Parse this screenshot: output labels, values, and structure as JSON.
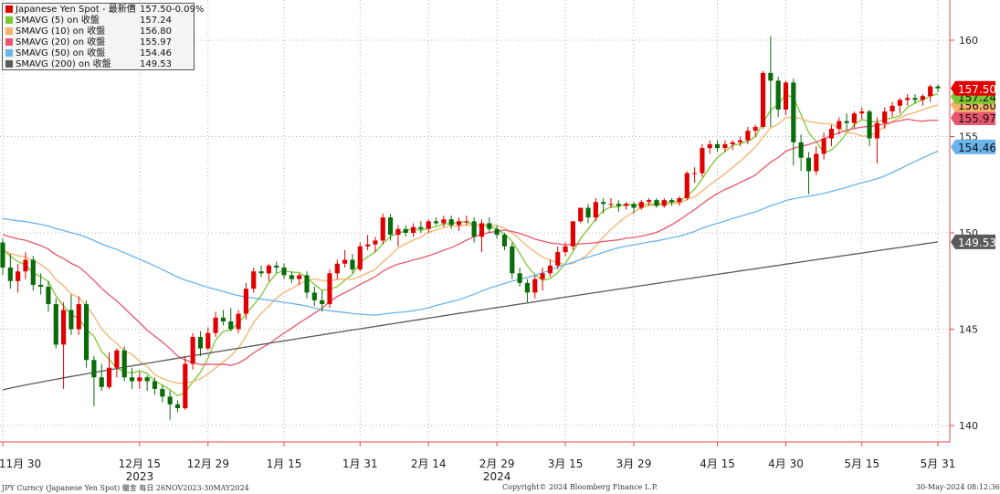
{
  "chart_data": {
    "type": "candlestick",
    "x_tick_labels": [
      "11月 30",
      "12月 15",
      "12月 29",
      "1月 15",
      "1月 31",
      "2月 14",
      "2月 29",
      "3月 15",
      "3月 29",
      "4月 15",
      "4月 30",
      "5月 15",
      "5月 31"
    ],
    "year_labels": [
      "2023",
      "2024"
    ],
    "y_ticks": [
      140,
      145,
      150,
      155,
      160
    ],
    "ylim": [
      139,
      162
    ],
    "grid": true,
    "legend_position": "top-left",
    "legend": [
      {
        "label": "Japanese Yen Spot - 最新價",
        "value": "157.50",
        "change": "-0.09%",
        "color": "#e00000"
      },
      {
        "label": "SMAVG (5)  on 收盤",
        "value": "157.24",
        "color": "#7dc832"
      },
      {
        "label": "SMAVG (10)  on 收盤",
        "value": "156.80",
        "color": "#f5b26b"
      },
      {
        "label": "SMAVG (20)  on 收盤",
        "value": "155.97",
        "color": "#e8566e"
      },
      {
        "label": "SMAVG (50)  on 收盤",
        "value": "154.46",
        "color": "#6ab4ec"
      },
      {
        "label": "SMAVG (200)  on 收盤",
        "value": "149.53",
        "color": "#5a5a5a"
      }
    ],
    "price_tags": [
      {
        "value": "157.50",
        "color": "#e00000",
        "text_color": "#ffffff"
      },
      {
        "value": "157.24",
        "color": "#7dc832",
        "text_color": "#111111"
      },
      {
        "value": "156.80",
        "color": "#f5b26b",
        "text_color": "#111111"
      },
      {
        "value": "155.97",
        "color": "#e8566e",
        "text_color": "#111111"
      },
      {
        "value": "154.46",
        "color": "#6ab4ec",
        "text_color": "#111111"
      },
      {
        "value": "149.53",
        "color": "#5a5a5a",
        "text_color": "#ffffff"
      }
    ],
    "candles": [
      [
        149.5,
        149.7,
        147.8,
        148.2
      ],
      [
        148.2,
        148.9,
        147.1,
        147.5
      ],
      [
        147.5,
        148.4,
        146.9,
        148.0
      ],
      [
        148.0,
        149.0,
        147.6,
        148.6
      ],
      [
        148.6,
        148.8,
        147.0,
        147.3
      ],
      [
        147.3,
        147.9,
        146.8,
        147.2
      ],
      [
        147.2,
        147.5,
        145.9,
        146.3
      ],
      [
        146.3,
        146.6,
        144.0,
        144.2
      ],
      [
        144.2,
        146.4,
        141.9,
        146.0
      ],
      [
        146.0,
        146.8,
        144.7,
        145.0
      ],
      [
        145.0,
        146.7,
        144.7,
        146.3
      ],
      [
        146.3,
        146.5,
        143.0,
        143.4
      ],
      [
        143.4,
        143.6,
        141.0,
        142.5
      ],
      [
        142.5,
        143.2,
        141.8,
        142.0
      ],
      [
        142.0,
        143.8,
        141.9,
        143.0
      ],
      [
        143.0,
        144.0,
        142.5,
        143.9
      ],
      [
        143.9,
        144.1,
        142.3,
        142.5
      ],
      [
        142.5,
        143.0,
        141.9,
        142.3
      ],
      [
        142.3,
        142.8,
        141.9,
        142.5
      ],
      [
        142.5,
        142.6,
        141.8,
        142.3
      ],
      [
        142.3,
        142.5,
        141.6,
        141.9
      ],
      [
        141.9,
        142.1,
        141.2,
        141.5
      ],
      [
        141.5,
        141.8,
        140.3,
        141.1
      ],
      [
        141.1,
        141.3,
        140.7,
        140.9
      ],
      [
        140.9,
        143.6,
        140.8,
        143.2
      ],
      [
        143.2,
        144.8,
        142.9,
        144.6
      ],
      [
        144.6,
        144.9,
        143.6,
        144.0
      ],
      [
        144.0,
        145.1,
        143.9,
        144.8
      ],
      [
        144.8,
        145.9,
        144.6,
        145.6
      ],
      [
        145.6,
        146.0,
        145.2,
        145.4
      ],
      [
        145.4,
        146.1,
        144.9,
        145.0
      ],
      [
        145.0,
        146.0,
        144.8,
        145.8
      ],
      [
        145.8,
        147.4,
        145.5,
        147.1
      ],
      [
        147.1,
        148.2,
        146.9,
        148.0
      ],
      [
        148.0,
        148.3,
        147.7,
        147.9
      ],
      [
        147.9,
        148.4,
        147.5,
        148.3
      ],
      [
        148.3,
        148.5,
        147.9,
        148.2
      ],
      [
        148.2,
        148.4,
        147.6,
        147.8
      ],
      [
        147.8,
        148.0,
        147.4,
        147.6
      ],
      [
        147.6,
        147.9,
        147.3,
        147.8
      ],
      [
        147.8,
        148.0,
        146.6,
        146.9
      ],
      [
        146.9,
        147.2,
        146.2,
        146.5
      ],
      [
        146.5,
        147.0,
        145.9,
        146.3
      ],
      [
        146.3,
        148.1,
        146.1,
        147.9
      ],
      [
        147.9,
        148.6,
        147.6,
        148.4
      ],
      [
        148.4,
        149.1,
        148.2,
        148.6
      ],
      [
        148.6,
        148.9,
        147.9,
        148.1
      ],
      [
        148.1,
        149.5,
        148.0,
        149.3
      ],
      [
        149.3,
        149.9,
        149.1,
        149.4
      ],
      [
        149.4,
        149.8,
        149.0,
        149.6
      ],
      [
        149.6,
        151.0,
        149.4,
        150.8
      ],
      [
        150.8,
        151.0,
        149.6,
        149.9
      ],
      [
        149.9,
        150.4,
        149.3,
        150.2
      ],
      [
        150.2,
        150.4,
        149.8,
        150.0
      ],
      [
        150.0,
        150.5,
        149.8,
        150.3
      ],
      [
        150.3,
        150.6,
        150.0,
        150.2
      ],
      [
        150.2,
        150.7,
        150.0,
        150.6
      ],
      [
        150.6,
        150.8,
        150.4,
        150.5
      ],
      [
        150.5,
        150.9,
        150.3,
        150.7
      ],
      [
        150.7,
        150.9,
        150.2,
        150.4
      ],
      [
        150.4,
        150.8,
        150.1,
        150.6
      ],
      [
        150.6,
        150.9,
        150.4,
        150.6
      ],
      [
        150.6,
        150.8,
        149.5,
        149.8
      ],
      [
        149.8,
        150.7,
        149.0,
        150.5
      ],
      [
        150.5,
        150.8,
        150.0,
        150.2
      ],
      [
        150.2,
        150.4,
        149.7,
        149.9
      ],
      [
        149.9,
        150.0,
        149.1,
        149.3
      ],
      [
        149.3,
        149.5,
        147.6,
        147.9
      ],
      [
        147.9,
        148.2,
        147.2,
        147.4
      ],
      [
        147.4,
        147.6,
        146.4,
        146.9
      ],
      [
        146.9,
        147.8,
        146.6,
        147.6
      ],
      [
        147.6,
        148.2,
        147.0,
        147.9
      ],
      [
        147.9,
        148.6,
        147.7,
        148.3
      ],
      [
        148.3,
        149.3,
        148.1,
        149.0
      ],
      [
        149.0,
        149.5,
        148.8,
        149.3
      ],
      [
        149.3,
        150.6,
        149.1,
        150.6
      ],
      [
        150.6,
        151.3,
        150.5,
        151.3
      ],
      [
        151.3,
        151.5,
        150.5,
        150.8
      ],
      [
        150.8,
        151.8,
        150.6,
        151.6
      ],
      [
        151.6,
        151.8,
        151.0,
        151.5
      ],
      [
        151.5,
        151.8,
        151.3,
        151.5
      ],
      [
        151.5,
        151.7,
        151.1,
        151.4
      ],
      [
        151.4,
        151.6,
        151.2,
        151.5
      ],
      [
        151.5,
        151.6,
        151.0,
        151.3
      ],
      [
        151.3,
        151.7,
        151.2,
        151.6
      ],
      [
        151.6,
        151.8,
        151.4,
        151.7
      ],
      [
        151.7,
        151.8,
        151.3,
        151.4
      ],
      [
        151.4,
        151.8,
        151.3,
        151.7
      ],
      [
        151.7,
        151.8,
        151.4,
        151.6
      ],
      [
        151.6,
        151.9,
        151.4,
        151.8
      ],
      [
        151.8,
        153.2,
        151.7,
        153.1
      ],
      [
        153.1,
        153.4,
        152.6,
        153.1
      ],
      [
        153.1,
        154.6,
        152.9,
        154.4
      ],
      [
        154.4,
        154.8,
        154.1,
        154.6
      ],
      [
        154.6,
        154.8,
        154.2,
        154.4
      ],
      [
        154.4,
        154.8,
        154.2,
        154.6
      ],
      [
        154.6,
        154.8,
        154.3,
        154.7
      ],
      [
        154.7,
        155.0,
        154.5,
        154.8
      ],
      [
        154.8,
        155.5,
        154.6,
        155.3
      ],
      [
        155.3,
        155.6,
        155.0,
        155.5
      ],
      [
        155.5,
        158.4,
        155.4,
        158.3
      ],
      [
        158.3,
        160.2,
        155.5,
        157.9
      ],
      [
        157.9,
        158.1,
        156.0,
        156.4
      ],
      [
        156.4,
        157.9,
        156.1,
        157.8
      ],
      [
        157.8,
        158.0,
        153.5,
        154.7
      ],
      [
        154.7,
        155.1,
        153.2,
        153.9
      ],
      [
        153.9,
        154.2,
        152.0,
        153.2
      ],
      [
        153.2,
        154.5,
        153.0,
        154.1
      ],
      [
        154.1,
        155.2,
        153.8,
        154.9
      ],
      [
        154.9,
        155.6,
        154.5,
        155.4
      ],
      [
        155.4,
        156.0,
        155.1,
        155.8
      ],
      [
        155.8,
        156.2,
        155.3,
        155.7
      ],
      [
        155.7,
        156.3,
        155.4,
        156.2
      ],
      [
        156.2,
        156.5,
        155.9,
        156.3
      ],
      [
        156.3,
        156.4,
        154.5,
        154.9
      ],
      [
        154.9,
        156.0,
        153.6,
        155.7
      ],
      [
        155.7,
        156.5,
        155.4,
        156.3
      ],
      [
        156.3,
        156.8,
        156.0,
        156.6
      ],
      [
        156.6,
        157.0,
        156.2,
        156.9
      ],
      [
        156.9,
        157.2,
        156.6,
        157.0
      ],
      [
        157.0,
        157.2,
        156.7,
        156.9
      ],
      [
        156.9,
        157.2,
        156.6,
        157.1
      ],
      [
        157.1,
        157.7,
        156.8,
        157.6
      ],
      [
        157.6,
        157.7,
        157.3,
        157.5
      ]
    ]
  },
  "footer": {
    "left": "JPY Curncy (Japanese Yen Spot) 蠟金  每日 26NOV2023-30MAY2024",
    "center": "Copyright© 2024 Bloomberg Finance L.P.",
    "right": "30-May-2024 08:12:36"
  }
}
